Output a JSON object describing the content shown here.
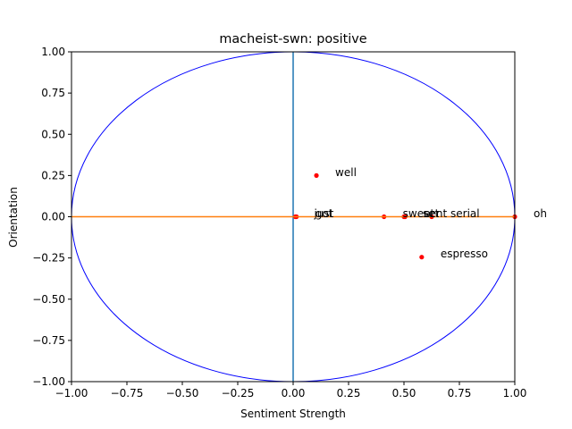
{
  "chart_data": {
    "type": "scatter",
    "title": "macheist-swn: positive",
    "xlabel": "Sentiment Strength",
    "ylabel": "Orientation",
    "xlim": [
      -1.0,
      1.0
    ],
    "ylim": [
      -1.0,
      1.0
    ],
    "xticks": [
      "−1.00",
      "−0.75",
      "−0.50",
      "−0.25",
      "0.00",
      "0.25",
      "0.50",
      "0.75",
      "1.00"
    ],
    "yticks": [
      "−1.00",
      "−0.75",
      "−0.50",
      "−0.25",
      "0.00",
      "0.25",
      "0.50",
      "0.75",
      "1.00"
    ],
    "xtick_values": [
      -1.0,
      -0.75,
      -0.5,
      -0.25,
      0.0,
      0.25,
      0.5,
      0.75,
      1.0
    ],
    "ytick_values": [
      -1.0,
      -0.75,
      -0.5,
      -0.25,
      0.0,
      0.25,
      0.5,
      0.75,
      1.0
    ],
    "grid": false,
    "unit_circle_color": "#0000ff",
    "vertical_axis_color": "#1f77b4",
    "horizontal_axis_color": "#ff7f0e",
    "point_color": "#ff0000",
    "points": [
      {
        "label": "well",
        "x": 0.105,
        "y": 0.25
      },
      {
        "label": "just",
        "x": 0.01,
        "y": 0.0
      },
      {
        "label": "got",
        "x": 0.015,
        "y": 0.0
      },
      {
        "label": "sweet",
        "x": 0.41,
        "y": 0.0
      },
      {
        "label": "set",
        "x": 0.5,
        "y": 0.0
      },
      {
        "label": "sent",
        "x": 0.505,
        "y": 0.0
      },
      {
        "label": "serial",
        "x": 0.625,
        "y": 0.0
      },
      {
        "label": "oh",
        "x": 1.0,
        "y": 0.0
      },
      {
        "label": "espresso",
        "x": 0.58,
        "y": -0.245
      }
    ]
  }
}
